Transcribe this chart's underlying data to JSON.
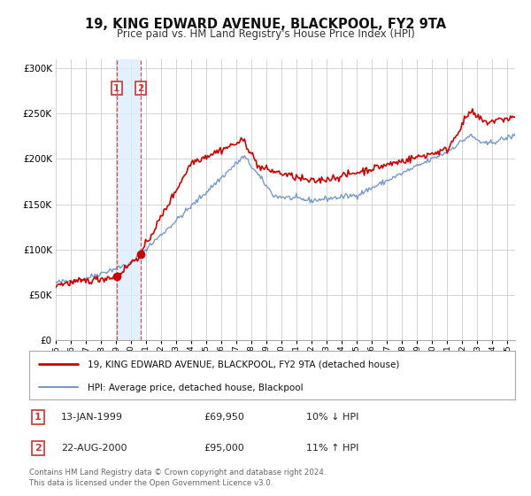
{
  "title": "19, KING EDWARD AVENUE, BLACKPOOL, FY2 9TA",
  "subtitle": "Price paid vs. HM Land Registry's House Price Index (HPI)",
  "legend_line1": "19, KING EDWARD AVENUE, BLACKPOOL, FY2 9TA (detached house)",
  "legend_line2": "HPI: Average price, detached house, Blackpool",
  "sale1_date": "13-JAN-1999",
  "sale1_price": "£69,950",
  "sale1_hpi": "10% ↓ HPI",
  "sale1_year": 1999.04,
  "sale1_value": 69950,
  "sale2_date": "22-AUG-2000",
  "sale2_price": "£95,000",
  "sale2_hpi": "11% ↑ HPI",
  "sale2_year": 2000.64,
  "sale2_value": 95000,
  "line1_color": "#cc0000",
  "line2_color": "#7799cc",
  "marker_color": "#cc0000",
  "shade_color": "#ddeeff",
  "vline_color": "#cc4444",
  "footnote": "Contains HM Land Registry data © Crown copyright and database right 2024.\nThis data is licensed under the Open Government Licence v3.0.",
  "ylim": [
    0,
    310000
  ],
  "yticks": [
    0,
    50000,
    100000,
    150000,
    200000,
    250000,
    300000
  ],
  "xlim_start": 1995.0,
  "xlim_end": 2025.5,
  "background_color": "#ffffff",
  "grid_color": "#cccccc"
}
